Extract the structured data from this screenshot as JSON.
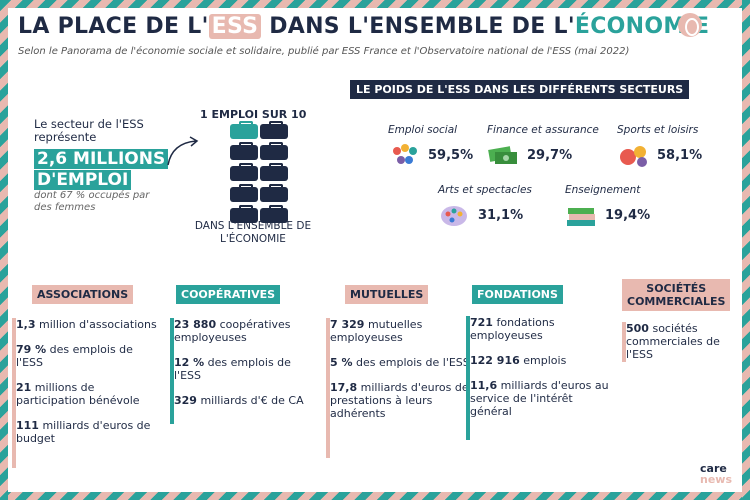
{
  "title": {
    "part1": "LA PLACE DE L'",
    "hl1": "ESS",
    "part2": " DANS L'ENSEMBLE DE L'",
    "hl2": "ÉCONOMIE"
  },
  "subtitle": "Selon le Panorama de l'économie sociale et solidaire, publié par ESS France et l'Observatoire national de l'ESS (mai 2022)",
  "intro": {
    "text": "Le secteur de l'ESS représente",
    "big_line1": "2,6 MILLIONS",
    "big_line2": "D'EMPLOI",
    "note": "dont 67 % occupés par des femmes",
    "one_in_ten": "1 EMPLOI SUR 10",
    "in_economy": "DANS L'ENSEMBLE DE L'ÉCONOMIE"
  },
  "sectors": {
    "header": "LE POIDS DE L'ESS DANS LES DIFFÉRENTS SECTEURS",
    "items": [
      {
        "label": "Emploi social",
        "value": "59,5%",
        "icon": "people-icon"
      },
      {
        "label": "Finance et assurance",
        "value": "29,7%",
        "icon": "money-icon"
      },
      {
        "label": "Sports et loisirs",
        "value": "58,1%",
        "icon": "sports-ball-icon"
      },
      {
        "label": "Arts et spectacles",
        "value": "31,1%",
        "icon": "palette-icon"
      },
      {
        "label": "Enseignement",
        "value": "19,4%",
        "icon": "books-icon"
      }
    ]
  },
  "categories": {
    "associations": {
      "label": "ASSOCIATIONS",
      "stats": [
        {
          "bold": "1,3",
          "text": " million d'associations"
        },
        {
          "bold": "79 %",
          "text": " des emplois de l'ESS"
        },
        {
          "bold": "21",
          "text": " millions de participation bénévole"
        },
        {
          "bold": "111",
          "text": " milliards d'euros de budget"
        }
      ]
    },
    "cooperatives": {
      "label": "COOPÉRATIVES",
      "stats": [
        {
          "bold": "23 880",
          "text": " coopératives employeuses"
        },
        {
          "bold": "12 %",
          "text": " des emplois de l'ESS"
        },
        {
          "bold": "329",
          "text": " milliards d'€ de CA"
        }
      ]
    },
    "mutuelles": {
      "label": "MUTUELLES",
      "stats": [
        {
          "bold": "7 329",
          "text": " mutuelles employeuses"
        },
        {
          "bold": "5 %",
          "text": " des emplois de l'ESS"
        },
        {
          "bold": "17,8",
          "text": " milliards d'euros de prestations à leurs adhérents"
        }
      ]
    },
    "fondations": {
      "label": "FONDATIONS",
      "stats": [
        {
          "bold": "721",
          "text": " fondations employeuses"
        },
        {
          "bold": "122 916",
          "text": " emplois"
        },
        {
          "bold": "11,6",
          "text": " milliards d'euros au service de l'intérêt général"
        }
      ]
    },
    "societes": {
      "label_line1": "SOCIÉTÉS",
      "label_line2": "COMMERCIALES",
      "stats": [
        {
          "bold": "500",
          "text": " sociétés commerciales de l'ESS"
        }
      ]
    }
  },
  "brand": {
    "care": "care",
    "news": "news"
  },
  "colors": {
    "teal": "#2aa29b",
    "pink": "#e8b9b0",
    "navy": "#1f2a44"
  }
}
